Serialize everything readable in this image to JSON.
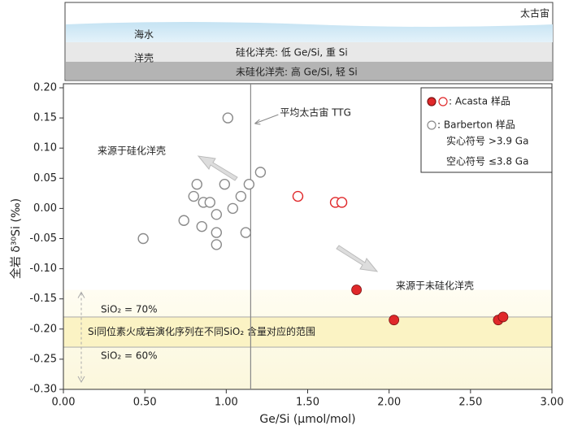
{
  "panel": {
    "era": "太古宙",
    "seawater": "海水",
    "crust": "洋壳",
    "silicified": "硅化洋壳: 低 Ge/Si, 重 Si",
    "unsilicified": "未硅化洋壳: 高 Ge/Si, 轻 Si"
  },
  "chart_data": {
    "type": "scatter",
    "xlabel": "Ge/Si (μmol/mol)",
    "ylabel": "全岩 δ³⁰Si (‰)",
    "xlim": [
      0,
      3
    ],
    "ylim": [
      -0.3,
      0.2
    ],
    "xticks": [
      {
        "value": 0,
        "label": "0.00"
      },
      {
        "value": 0.5,
        "label": "0.50"
      },
      {
        "value": 1,
        "label": "1.00"
      },
      {
        "value": 1.5,
        "label": "1.50"
      },
      {
        "value": 2,
        "label": "2.00"
      },
      {
        "value": 2.5,
        "label": "2.50"
      },
      {
        "value": 3,
        "label": "3.00"
      }
    ],
    "yticks": [
      {
        "value": 0.2,
        "label": "0.20"
      },
      {
        "value": 0.15,
        "label": "0.15"
      },
      {
        "value": 0.1,
        "label": "0.10"
      },
      {
        "value": 0.05,
        "label": "0.05"
      },
      {
        "value": 0,
        "label": "0.00"
      },
      {
        "value": -0.05,
        "label": "-0.05"
      },
      {
        "value": -0.1,
        "label": "-0.10"
      },
      {
        "value": -0.15,
        "label": "-0.15"
      },
      {
        "value": -0.2,
        "label": "-0.20"
      },
      {
        "value": -0.25,
        "label": "-0.25"
      },
      {
        "value": -0.3,
        "label": "-0.30"
      }
    ],
    "series": [
      {
        "name": ": Acasta 样品",
        "color": "#e0282a",
        "x": [
          1.44,
          1.67,
          1.71,
          1.8,
          2.03,
          2.67,
          2.7
        ],
        "values": [
          0.02,
          0.01,
          0.01,
          -0.135,
          -0.185,
          -0.185,
          -0.18
        ],
        "filled": [
          false,
          false,
          false,
          true,
          true,
          true,
          true
        ]
      },
      {
        "name": ": Barberton 样品",
        "color": "#8a8a8a",
        "x": [
          1.01,
          1.21,
          1.14,
          0.99,
          0.82,
          0.8,
          1.09,
          0.86,
          0.9,
          1.04,
          0.94,
          0.74,
          0.85,
          0.94,
          1.12,
          0.49,
          0.94
        ],
        "values": [
          0.15,
          0.06,
          0.04,
          0.04,
          0.04,
          0.02,
          0.02,
          0.01,
          0.01,
          0,
          -0.01,
          -0.02,
          -0.03,
          -0.04,
          -0.04,
          -0.05,
          -0.06
        ],
        "filled": [
          false,
          false,
          false,
          false,
          false,
          false,
          false,
          false,
          false,
          false,
          false,
          false,
          false,
          false,
          false,
          false,
          false
        ]
      }
    ],
    "legend_notes": [
      "实心符号 >3.9 Ga",
      "空心符号 ≤3.8 Ga"
    ],
    "reference_line": {
      "x": 1.15,
      "label": "平均太古宙 TTG"
    },
    "band": {
      "y": [
        -0.23,
        -0.18
      ],
      "shade": [
        -0.3,
        -0.135
      ],
      "label": "Si同位素火成岩演化序列在不同SiO₂ 含量对应的范围",
      "upper_label": "SiO₂ = 70%",
      "lower_label": "SiO₂ = 60%"
    },
    "annotations": [
      "来源于硅化洋壳",
      "来源于未硅化洋壳"
    ]
  }
}
